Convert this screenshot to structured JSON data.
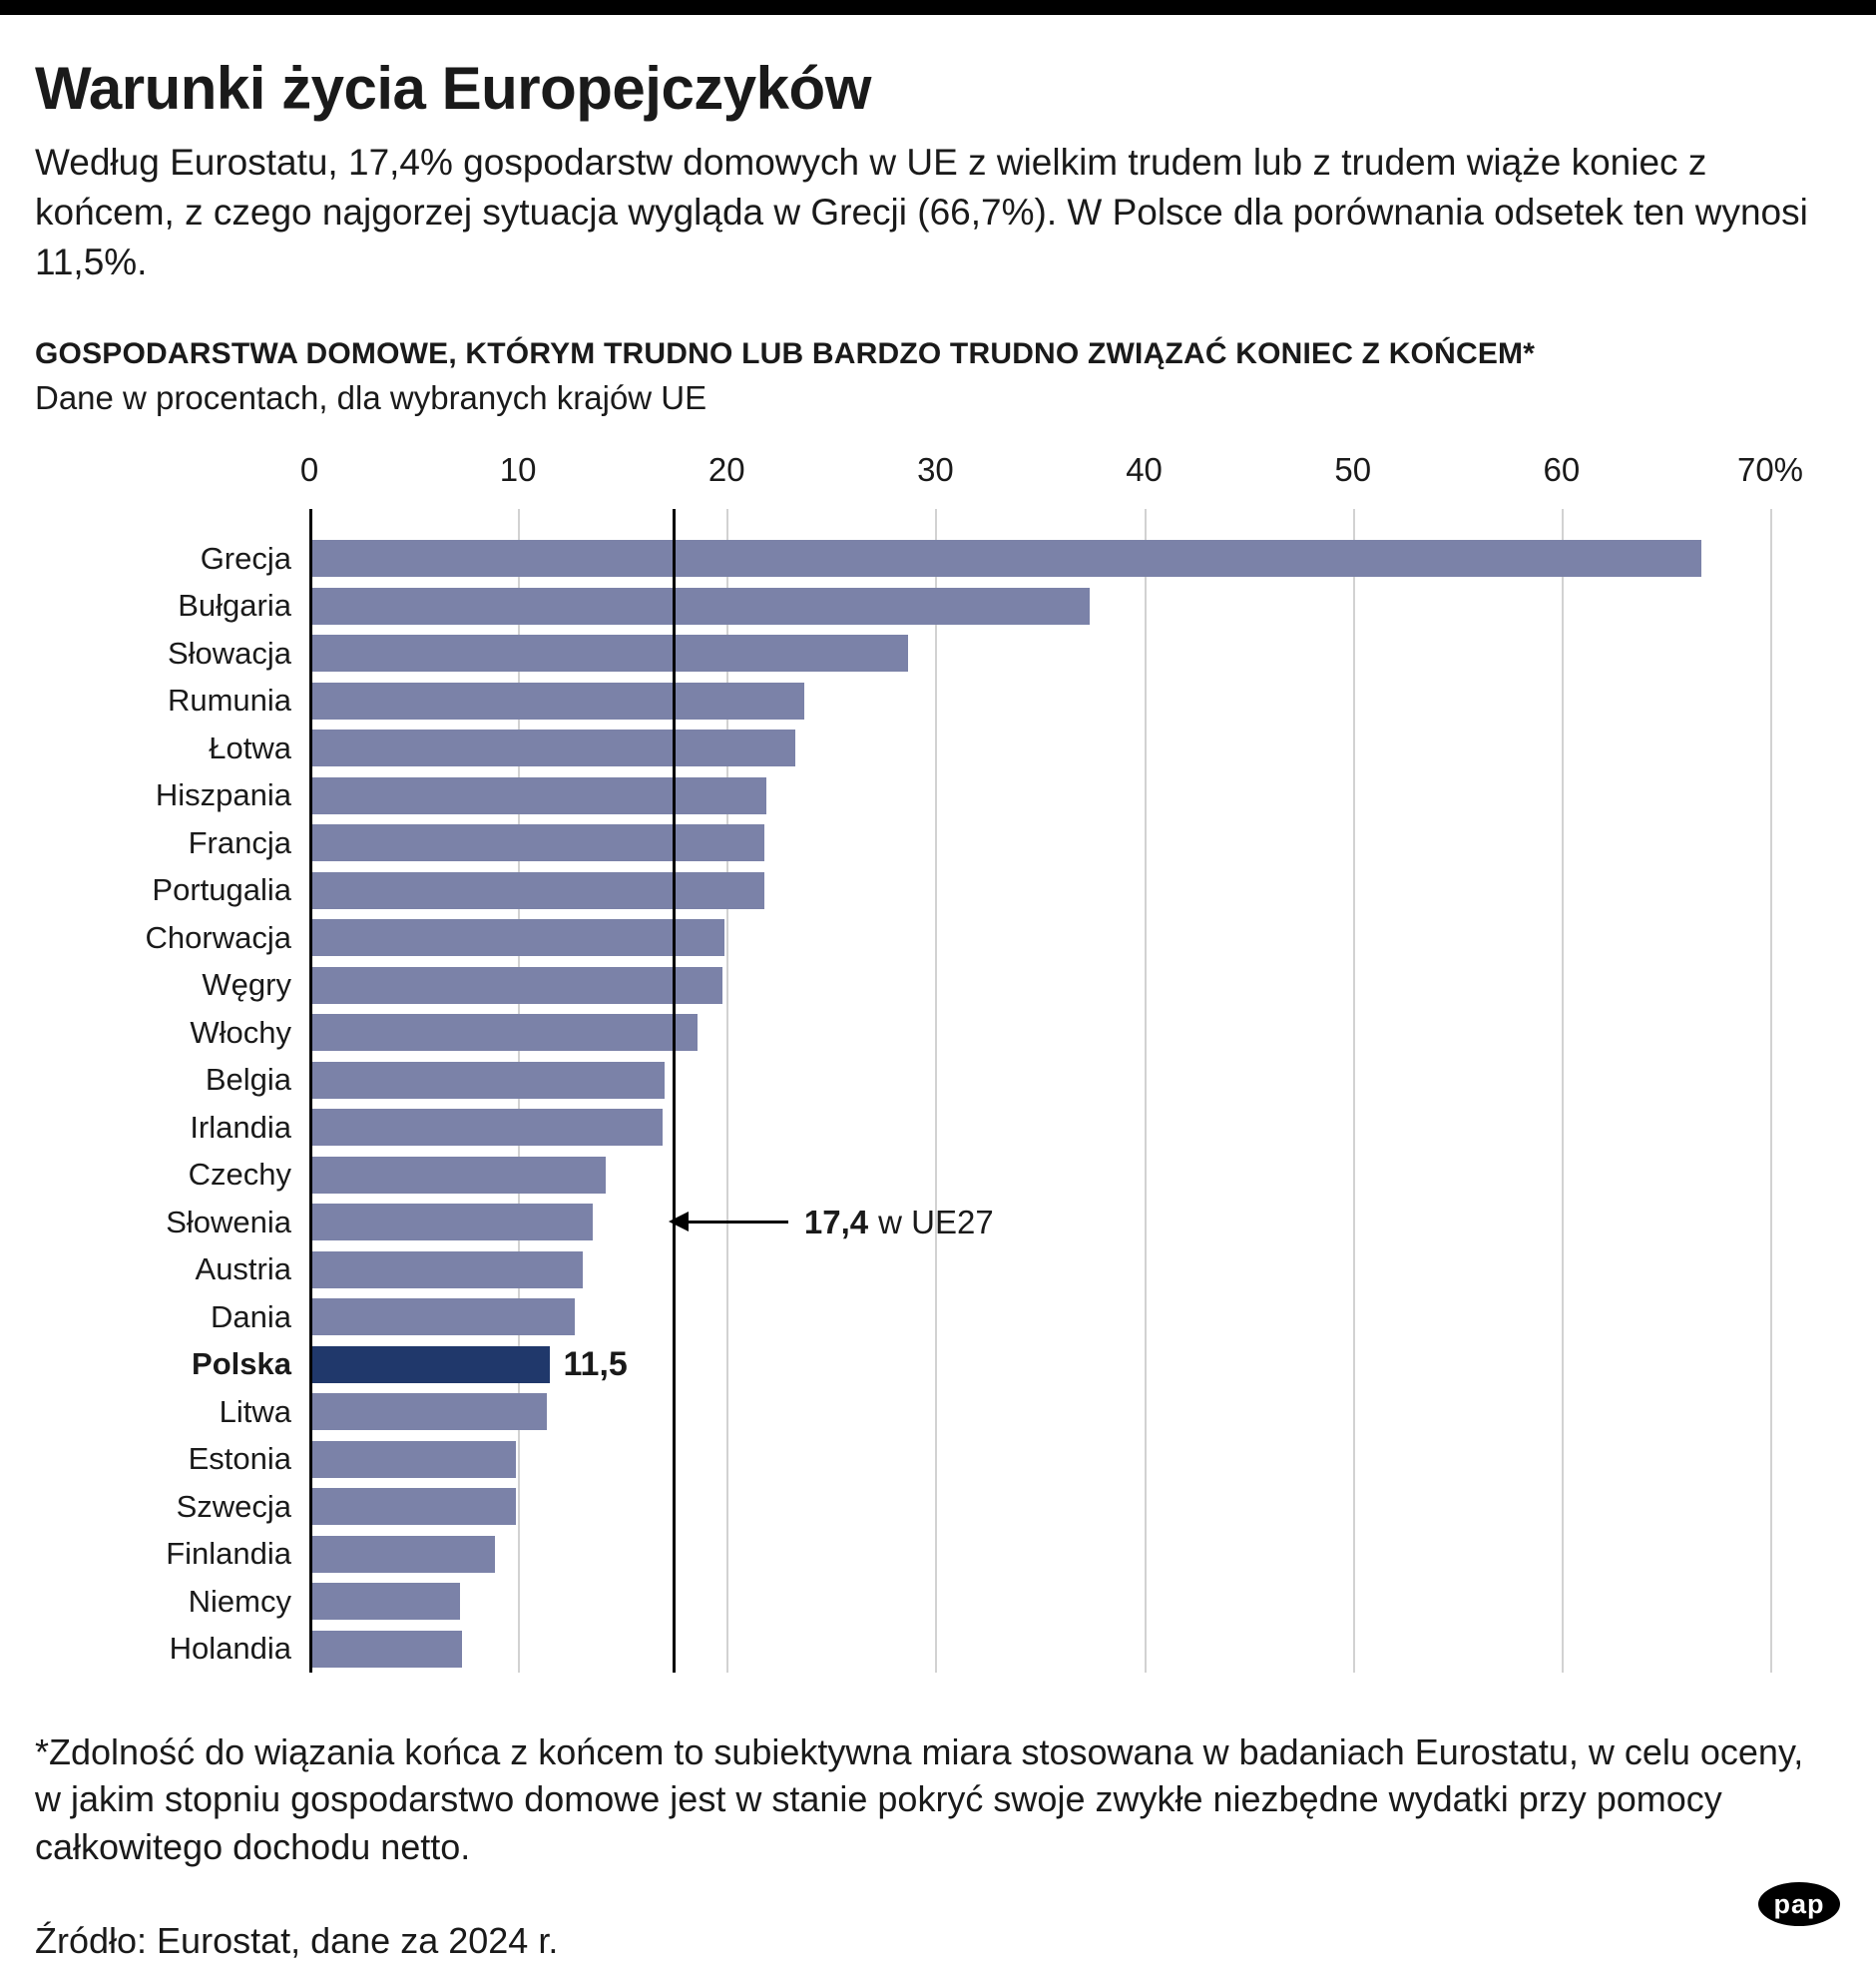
{
  "page": {
    "title": "Warunki życia Europejczyków",
    "intro": "Według Eurostatu, 17,4% gospodarstw domowych w UE z wielkim trudem lub z trudem wiąże koniec z końcem, z czego najgorzej sytuacja wygląda w Grecji (66,7%). W Polsce dla porównania odsetek ten wynosi 11,5%."
  },
  "chart_data": {
    "type": "bar",
    "orientation": "horizontal",
    "title": "GOSPODARSTWA DOMOWE, KTÓRYM TRUDNO LUB BARDZO TRUDNO ZWIĄZAĆ KONIEC Z KOŃCEM*",
    "subtitle": "Dane w procentach, dla wybranych krajów UE",
    "unit": "percent",
    "xlim": [
      0,
      70
    ],
    "x_ticks": [
      0,
      10,
      20,
      30,
      40,
      50,
      60,
      70
    ],
    "x_tick_labels": [
      "0",
      "10",
      "20",
      "30",
      "40",
      "50",
      "60",
      "70%"
    ],
    "grid": true,
    "categories": [
      "Grecja",
      "Bułgaria",
      "Słowacja",
      "Rumunia",
      "Łotwa",
      "Hiszpania",
      "Francja",
      "Portugalia",
      "Chorwacja",
      "Węgry",
      "Włochy",
      "Belgia",
      "Irlandia",
      "Czechy",
      "Słowenia",
      "Austria",
      "Dania",
      "Polska",
      "Litwa",
      "Estonia",
      "Szwecja",
      "Finlandia",
      "Niemcy",
      "Holandia"
    ],
    "values": [
      66.7,
      37.4,
      28.7,
      23.7,
      23.3,
      21.9,
      21.8,
      21.8,
      19.9,
      19.8,
      18.6,
      17.0,
      16.9,
      14.2,
      13.6,
      13.1,
      12.7,
      11.5,
      11.4,
      9.9,
      9.9,
      8.9,
      7.2,
      7.3
    ],
    "highlight": {
      "country": "Polska",
      "value_label": "11,5"
    },
    "reference_line": {
      "value": 17.4,
      "label_bold": "17,4",
      "label_suffix": "w UE27",
      "row_anchor": "Słowenia"
    },
    "colors": {
      "bar": "#7b82a8",
      "highlight_bar": "#20386b",
      "grid": "#d2d2d2",
      "axis": "#000000"
    }
  },
  "footer": {
    "footnote": "*Zdolność do wiązania końca z końcem to subiektywna miara stosowana w badaniach Eurostatu, w celu oceny, w jakim stopniu gospodarstwo domowe jest w stanie pokryć swoje zwykłe niezbędne wydatki przy pomocy całkowitego dochodu netto.",
    "source": "Źródło: Eurostat, dane za 2024 r.",
    "logo": "pap"
  }
}
